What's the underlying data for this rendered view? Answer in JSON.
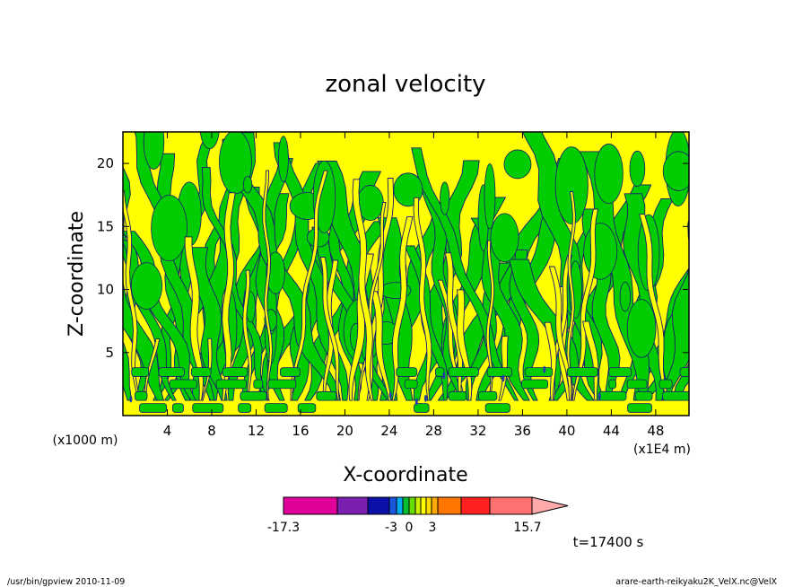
{
  "chart_data": {
    "type": "heatmap",
    "title": "zonal velocity",
    "xlabel": "X-coordinate",
    "ylabel": "Z-coordinate",
    "x_unit_left": "(x1000 m)",
    "x_unit_right": "(x1E4 m)",
    "xlim": [
      0,
      51
    ],
    "ylim": [
      0,
      22.5
    ],
    "x_ticks": [
      4,
      8,
      12,
      16,
      20,
      24,
      28,
      32,
      36,
      40,
      44,
      48
    ],
    "y_ticks": [
      5,
      10,
      15,
      20
    ],
    "x_tick_labels": [
      "4",
      "8",
      "12",
      "16",
      "20",
      "24",
      "28",
      "32",
      "36",
      "40",
      "44",
      "48"
    ],
    "y_tick_labels": [
      "5",
      "10",
      "15",
      "20"
    ],
    "grid": false,
    "field_colors": {
      "positive": "#ffff00",
      "negative": "#00cc00",
      "contour": "#1a1a6e",
      "deep_negative": "#2a3aa8"
    },
    "colorbar": {
      "min": -17.3,
      "max": 15.7,
      "labels": [
        "-17.3",
        "-3",
        "0",
        "3",
        "15.7"
      ],
      "bins": [
        {
          "color": "#e0009a",
          "w": 60
        },
        {
          "color": "#7a1fb0",
          "w": 34
        },
        {
          "color": "#0a10a8",
          "w": 24
        },
        {
          "color": "#1a55e0",
          "w": 8
        },
        {
          "color": "#00aaee",
          "w": 7
        },
        {
          "color": "#00c030",
          "w": 7
        },
        {
          "color": "#66dd00",
          "w": 7
        },
        {
          "color": "#ccee00",
          "w": 6
        },
        {
          "color": "#ffff00",
          "w": 6
        },
        {
          "color": "#ffdd00",
          "w": 6
        },
        {
          "color": "#ffaa00",
          "w": 7
        },
        {
          "color": "#ff7700",
          "w": 26
        },
        {
          "color": "#ff2020",
          "w": 32
        },
        {
          "color": "#ff7070",
          "w": 47
        },
        {
          "color": "#ffaaaa",
          "w": 40
        }
      ]
    },
    "time_label": "t=17400 s"
  },
  "footer": {
    "left": "/usr/bin/gpview   2010-11-09",
    "right": "arare-earth-reikyaku2K_VelX.nc@VelX"
  }
}
